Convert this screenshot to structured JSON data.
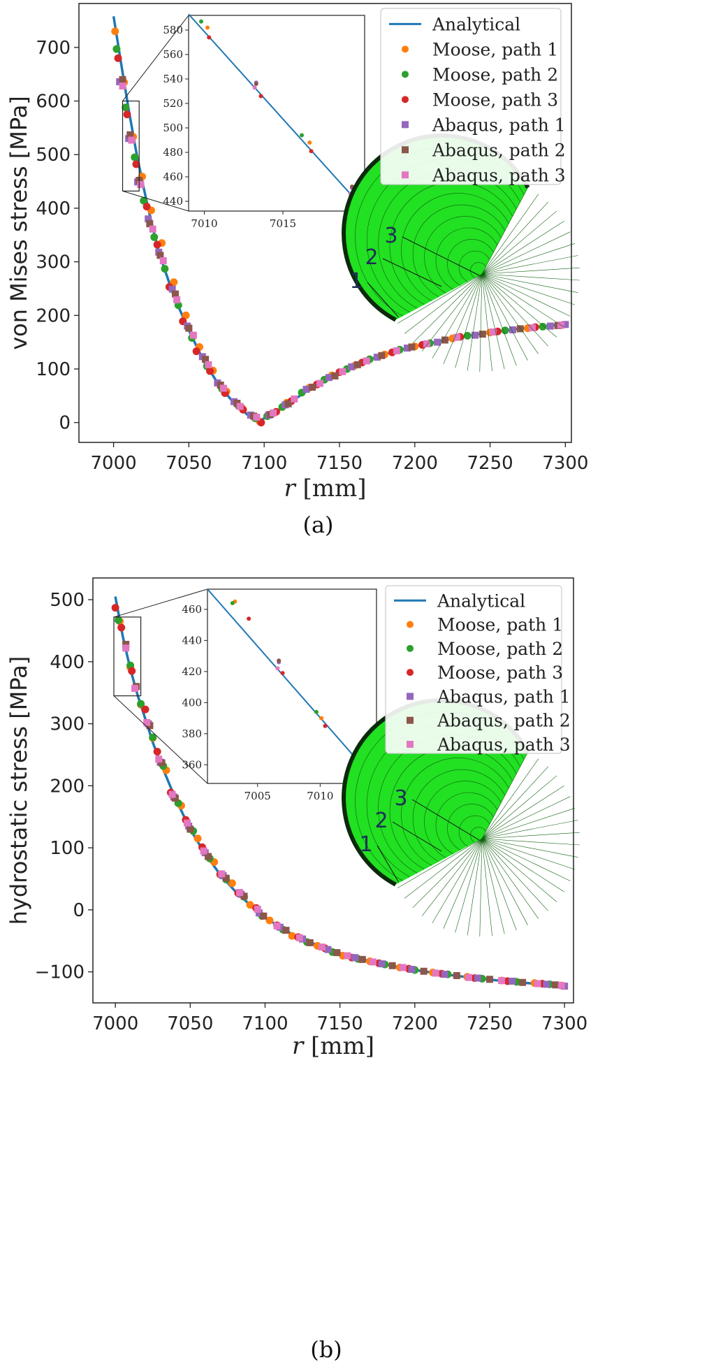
{
  "chart_data": [
    {
      "type": "line",
      "caption": "(a)",
      "ylabel": "von Mises stress [MPa]",
      "xlabel_var": "r",
      "xlabel_unit": " [mm]",
      "xlim": [
        6977,
        7304
      ],
      "ylim": [
        -37,
        782
      ],
      "xticks": [
        7000,
        7050,
        7100,
        7150,
        7200,
        7250,
        7300
      ],
      "yticks": [
        0,
        100,
        200,
        300,
        400,
        500,
        600,
        700
      ],
      "analytical": {
        "name": "Analytical",
        "x": [
          7000,
          7005,
          7010,
          7015,
          7020,
          7025,
          7030,
          7040,
          7050,
          7060,
          7070,
          7080,
          7090,
          7097,
          7100,
          7110,
          7120,
          7130,
          7140,
          7150,
          7160,
          7170,
          7180,
          7190,
          7200,
          7210,
          7220,
          7230,
          7240,
          7250,
          7260,
          7270,
          7280,
          7290,
          7300
        ],
        "y": [
          758,
          670,
          585,
          506,
          438,
          375,
          318,
          236,
          172,
          114,
          70,
          36,
          12,
          3,
          8,
          24,
          43,
          62,
          80,
          94,
          108,
          118,
          127,
          136,
          142,
          148,
          154,
          159,
          164,
          168,
          172,
          175,
          178,
          181,
          183
        ]
      },
      "series": [
        {
          "name": "Moose, path 1",
          "marker": "circle",
          "x": [
            7001,
            7007,
            7013,
            7019,
            7025,
            7032,
            7040,
            7048,
            7057,
            7066,
            7075,
            7085,
            7097,
            7105,
            7115,
            7130,
            7145,
            7160,
            7180,
            7200,
            7225,
            7250,
            7275,
            7298
          ],
          "y": [
            730,
            635,
            533,
            459,
            396,
            335,
            262,
            200,
            141,
            97,
            58,
            28,
            2,
            16,
            37,
            65,
            88,
            106,
            127,
            142,
            157,
            168,
            176,
            182
          ]
        },
        {
          "name": "Moose, path 2",
          "marker": "circle",
          "x": [
            7002,
            7008,
            7014,
            7020,
            7027,
            7034,
            7043,
            7052,
            7062,
            7072,
            7083,
            7094,
            7102,
            7112,
            7125,
            7140,
            7155,
            7170,
            7190,
            7210,
            7235,
            7260,
            7285
          ],
          "y": [
            697,
            588,
            495,
            414,
            346,
            287,
            219,
            158,
            105,
            63,
            31,
            8,
            12,
            29,
            56,
            80,
            100,
            118,
            136,
            148,
            162,
            172,
            179
          ]
        },
        {
          "name": "Moose, path 3",
          "marker": "circle",
          "x": [
            7003,
            7009,
            7015,
            7022,
            7029,
            7037,
            7046,
            7055,
            7064,
            7074,
            7086,
            7098,
            7108,
            7118,
            7135,
            7150,
            7165,
            7185,
            7205,
            7230,
            7255,
            7280
          ],
          "y": [
            680,
            575,
            482,
            403,
            332,
            253,
            189,
            133,
            96,
            55,
            24,
            0,
            20,
            40,
            71,
            94,
            112,
            131,
            145,
            160,
            170,
            178
          ]
        },
        {
          "name": "Abaqus, path 1",
          "marker": "square",
          "x": [
            7004,
            7010,
            7016,
            7023,
            7030,
            7039,
            7049,
            7059,
            7069,
            7080,
            7091,
            7103,
            7114,
            7128,
            7143,
            7158,
            7175,
            7195,
            7215,
            7240,
            7265,
            7290,
            7300
          ],
          "y": [
            636,
            530,
            449,
            380,
            318,
            249,
            180,
            123,
            74,
            39,
            14,
            14,
            33,
            62,
            84,
            104,
            122,
            139,
            150,
            163,
            173,
            180,
            183
          ]
        },
        {
          "name": "Abaqus, path 2",
          "marker": "square",
          "x": [
            7006,
            7011,
            7017,
            7024,
            7031,
            7041,
            7050,
            7061,
            7071,
            7082,
            7093,
            7104,
            7116,
            7132,
            7147,
            7162,
            7178,
            7198,
            7220,
            7245,
            7270,
            7295
          ],
          "y": [
            640,
            537,
            452,
            371,
            312,
            240,
            176,
            118,
            70,
            36,
            12,
            15,
            35,
            66,
            87,
            108,
            125,
            141,
            154,
            165,
            175,
            181
          ]
        },
        {
          "name": "Abaqus, path 3",
          "marker": "square",
          "x": [
            7006,
            7012,
            7018,
            7026,
            7033,
            7042,
            7053,
            7063,
            7073,
            7084,
            7095,
            7106,
            7120,
            7137,
            7152,
            7168,
            7188,
            7208,
            7228,
            7252,
            7278,
            7297
          ],
          "y": [
            628,
            527,
            444,
            361,
            302,
            229,
            163,
            108,
            64,
            30,
            10,
            18,
            44,
            73,
            95,
            115,
            134,
            147,
            159,
            169,
            177,
            182
          ]
        }
      ],
      "inset": {
        "xlim": [
          7009,
          7020.2
        ],
        "ylim": [
          432,
          592
        ],
        "xticks": [
          7010,
          7015
        ],
        "yticks": [
          440,
          460,
          480,
          500,
          520,
          540,
          560,
          580
        ],
        "analytical": {
          "x": [
            7009,
            7020.2
          ],
          "y": [
            593,
            433
          ]
        },
        "points": [
          {
            "series": 0,
            "x": [
              7010.2,
              7016.7
            ],
            "y": [
              582,
              488
            ]
          },
          {
            "series": 1,
            "x": [
              7009.8,
              7016.2
            ],
            "y": [
              587,
              494
            ]
          },
          {
            "series": 2,
            "x": [
              7010.3,
              7013.6,
              7016.8,
              7019.8
            ],
            "y": [
              574,
              526,
              481,
              438
            ]
          },
          {
            "series": 3,
            "x": [
              7013.3,
              7019.4
            ],
            "y": [
              537,
              451
            ]
          },
          {
            "series": 4,
            "x": [
              7013.3,
              7019.4
            ],
            "y": [
              536,
              452
            ]
          },
          {
            "series": 5,
            "x": [
              7013.2,
              7019.3
            ],
            "y": [
              533,
              446
            ]
          }
        ]
      },
      "mesh_labels": [
        "1",
        "2",
        "3"
      ]
    },
    {
      "type": "line",
      "caption": "(b)",
      "ylabel": "hydrostatic stress [MPa]",
      "xlabel_var": "r",
      "xlabel_unit": " [mm]",
      "xlim": [
        6985,
        7306
      ],
      "ylim": [
        -150,
        535
      ],
      "xticks": [
        7000,
        7050,
        7100,
        7150,
        7200,
        7250,
        7300
      ],
      "yticks": [
        -100,
        0,
        100,
        200,
        300,
        400,
        500
      ],
      "analytical": {
        "name": "Analytical",
        "x": [
          7000,
          7005,
          7010,
          7015,
          7020,
          7025,
          7030,
          7040,
          7050,
          7060,
          7070,
          7080,
          7090,
          7100,
          7110,
          7120,
          7140,
          7160,
          7180,
          7200,
          7220,
          7240,
          7260,
          7280,
          7300
        ],
        "y": [
          505,
          440,
          388,
          345,
          308,
          270,
          238,
          180,
          130,
          90,
          57,
          30,
          8,
          -12,
          -28,
          -42,
          -62,
          -77,
          -88,
          -97,
          -104,
          -110,
          -115,
          -119,
          -123
        ]
      },
      "series": [
        {
          "name": "Moose, path 1",
          "marker": "circle",
          "x": [
            7003,
            7010,
            7017,
            7025,
            7034,
            7044,
            7055,
            7066,
            7078,
            7090,
            7103,
            7118,
            7135,
            7152,
            7170,
            7190,
            7212,
            7235,
            7258,
            7280,
            7298
          ],
          "y": [
            465,
            391,
            331,
            277,
            225,
            168,
            115,
            77,
            43,
            8,
            -17,
            -42,
            -58,
            -74,
            -83,
            -93,
            -101,
            -108,
            -114,
            -118,
            -122
          ]
        },
        {
          "name": "Moose, path 2",
          "marker": "circle",
          "x": [
            7002,
            7010,
            7017,
            7025,
            7032,
            7042,
            7052,
            7063,
            7074,
            7086,
            7098,
            7112,
            7128,
            7145,
            7162,
            7180,
            7200,
            7222,
            7245,
            7268,
            7290
          ],
          "y": [
            467,
            394,
            332,
            278,
            232,
            172,
            127,
            83,
            49,
            21,
            -10,
            -32,
            -52,
            -68,
            -79,
            -88,
            -97,
            -104,
            -111,
            -116,
            -120
          ]
        },
        {
          "name": "Moose, path 3",
          "marker": "circle",
          "x": [
            7000,
            7004,
            7011,
            7020,
            7028,
            7037,
            7047,
            7058,
            7070,
            7082,
            7094,
            7108,
            7122,
            7140,
            7158,
            7176,
            7196,
            7218,
            7240,
            7262,
            7285
          ],
          "y": [
            487,
            455,
            385,
            323,
            255,
            189,
            145,
            101,
            57,
            27,
            3,
            -25,
            -44,
            -62,
            -77,
            -86,
            -95,
            -103,
            -110,
            -115,
            -119
          ]
        },
        {
          "name": "Abaqus, path 1",
          "marker": "square",
          "x": [
            7007,
            7014,
            7022,
            7030,
            7039,
            7049,
            7060,
            7072,
            7084,
            7096,
            7110,
            7125,
            7142,
            7160,
            7178,
            7198,
            7220,
            7242,
            7265,
            7288,
            7300
          ],
          "y": [
            427,
            360,
            300,
            238,
            182,
            135,
            92,
            55,
            25,
            -5,
            -28,
            -47,
            -64,
            -77,
            -87,
            -96,
            -104,
            -110,
            -115,
            -120,
            -123
          ]
        },
        {
          "name": "Abaqus, path 2",
          "marker": "square",
          "x": [
            7007,
            7014,
            7023,
            7031,
            7040,
            7050,
            7062,
            7074,
            7086,
            7099,
            7114,
            7130,
            7148,
            7165,
            7185,
            7206,
            7228,
            7250,
            7272,
            7294
          ],
          "y": [
            428,
            360,
            297,
            237,
            180,
            130,
            86,
            51,
            22,
            -10,
            -33,
            -53,
            -69,
            -80,
            -90,
            -99,
            -106,
            -112,
            -117,
            -121
          ]
        },
        {
          "name": "Abaqus, path 3",
          "marker": "square",
          "x": [
            7007,
            7013,
            7021,
            7029,
            7038,
            7048,
            7059,
            7071,
            7083,
            7095,
            7108,
            7123,
            7138,
            7155,
            7172,
            7192,
            7214,
            7236,
            7258,
            7282,
            7298
          ],
          "y": [
            422,
            357,
            302,
            243,
            186,
            140,
            95,
            58,
            28,
            1,
            -26,
            -45,
            -60,
            -74,
            -84,
            -93,
            -102,
            -109,
            -114,
            -119,
            -122
          ]
        }
      ],
      "inset": {
        "xlim": [
          7001,
          7014.5
        ],
        "ylim": [
          348,
          473
        ],
        "xticks": [
          7005,
          7010
        ],
        "yticks": [
          360,
          380,
          400,
          420,
          440,
          460
        ],
        "analytical": {
          "x": [
            7001,
            7014.5
          ],
          "y": [
            473,
            349
          ]
        },
        "points": [
          {
            "series": 0,
            "x": [
              7003.2,
              7010.1
            ],
            "y": [
              465,
              390
            ]
          },
          {
            "series": 1,
            "x": [
              7003.0,
              7009.7
            ],
            "y": [
              464,
              394
            ]
          },
          {
            "series": 2,
            "x": [
              7004.3,
              7007.0,
              7010.4,
              7013.7
            ],
            "y": [
              454,
              419,
              385,
              355
            ]
          },
          {
            "series": 3,
            "x": [
              7006.7,
              7013.3
            ],
            "y": [
              426,
              360
            ]
          },
          {
            "series": 4,
            "x": [
              7006.7,
              7013.4
            ],
            "y": [
              427,
              361
            ]
          },
          {
            "series": 5,
            "x": [
              7006.6,
              7013.2
            ],
            "y": [
              422,
              356
            ]
          }
        ]
      },
      "mesh_labels": [
        "1",
        "2",
        "3"
      ]
    }
  ],
  "colors": {
    "analytical": "#1f77b4",
    "series": [
      "#ff7f0e",
      "#2ca02c",
      "#d62728",
      "#9467bd",
      "#8c564b",
      "#e377c2"
    ],
    "mesh_fill": "#22e022",
    "mesh_line": "#0c5f0c",
    "mesh_edge": "#0a2a0a"
  },
  "icons": [
    "spherical-shell-mesh-icon"
  ]
}
